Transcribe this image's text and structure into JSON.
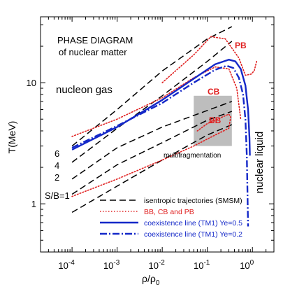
{
  "chart_data": {
    "type": "line",
    "title": "PHASE DIAGRAM",
    "subtitle": "of nuclear matter",
    "xlabel": "ρ/ρ",
    "xlabel_sub": "0",
    "ylabel": "T(MeV)",
    "xscale": "log",
    "yscale": "log",
    "xlim": [
      2e-05,
      3
    ],
    "ylim": [
      0.4,
      35
    ],
    "x_ticks": [
      {
        "v": 0.0001,
        "base": "10",
        "exp": "-4"
      },
      {
        "v": 0.001,
        "base": "10",
        "exp": "-3"
      },
      {
        "v": 0.01,
        "base": "10",
        "exp": "-2"
      },
      {
        "v": 0.1,
        "base": "10",
        "exp": "-1"
      },
      {
        "v": 1,
        "base": "10",
        "exp": "0"
      }
    ],
    "y_ticks": [
      {
        "v": 1,
        "label": "1"
      },
      {
        "v": 10,
        "label": "10"
      }
    ],
    "colors": {
      "black": "#000000",
      "red": "#e02020",
      "blue": "#1428c8",
      "shade": "#bdbdbd"
    },
    "annotations": {
      "nucleon_gas": "nucleon gas",
      "nuclear_liquid": "nuclear liquid",
      "multifragmentation": "multifragmentation",
      "cb": "CB",
      "bb": "BB",
      "pb": "PB",
      "sb6": "6",
      "sb4": "4",
      "sb2": "2",
      "sb1": "S/B=1"
    },
    "legend": [
      {
        "label": "isentropic trajectories (SMSM)",
        "color": "#000000",
        "style": "dashed"
      },
      {
        "label": "BB, CB and PB",
        "color": "#e02020",
        "style": "dotted"
      },
      {
        "label": "coexistence line (TM1) Ye=0.5",
        "color": "#1428c8",
        "style": "solid"
      },
      {
        "label": "coexistence line (TM1) Ye=0.2",
        "color": "#1428c8",
        "style": "dashdot"
      }
    ],
    "shaded_region": {
      "x": [
        0.05,
        0.35
      ],
      "y": [
        3.0,
        7.8
      ]
    },
    "series": [
      {
        "style": "dashed",
        "color": "#000000",
        "points": [
          [
            0.0001,
            0.85
          ],
          [
            0.001,
            1.4
          ],
          [
            0.01,
            2.3
          ],
          [
            0.1,
            3.7
          ],
          [
            0.35,
            4.5
          ]
        ]
      },
      {
        "style": "dashed",
        "color": "#000000",
        "points": [
          [
            0.0001,
            1.2
          ],
          [
            0.001,
            2.1
          ],
          [
            0.01,
            3.2
          ],
          [
            0.1,
            4.9
          ],
          [
            0.35,
            5.8
          ]
        ]
      },
      {
        "style": "dashed",
        "color": "#000000",
        "points": [
          [
            0.0001,
            1.6
          ],
          [
            0.001,
            2.9
          ],
          [
            0.01,
            4.3
          ],
          [
            0.1,
            5.9
          ],
          [
            0.35,
            7.0
          ]
        ]
      },
      {
        "style": "dashed",
        "color": "#000000",
        "points": [
          [
            0.0001,
            2.2
          ],
          [
            0.001,
            4.2
          ],
          [
            0.01,
            7.8
          ],
          [
            0.1,
            15
          ],
          [
            0.35,
            22
          ]
        ]
      },
      {
        "style": "dashed",
        "color": "#000000",
        "points": [
          [
            0.0001,
            3.0
          ],
          [
            0.001,
            6.0
          ],
          [
            0.01,
            12.5
          ],
          [
            0.1,
            23
          ],
          [
            0.35,
            29
          ]
        ]
      },
      {
        "style": "dotted",
        "color": "#e02020",
        "points": [
          [
            0.0001,
            1.15
          ],
          [
            0.001,
            1.6
          ],
          [
            0.01,
            2.3
          ],
          [
            0.05,
            3.0
          ],
          [
            0.15,
            3.7
          ],
          [
            0.3,
            4.2
          ],
          [
            0.33,
            5.2
          ],
          [
            0.3,
            5.5
          ],
          [
            0.1,
            4.6
          ],
          [
            0.06,
            4.0
          ]
        ]
      },
      {
        "style": "dotted",
        "color": "#e02020",
        "points": [
          [
            0.0001,
            3.6
          ],
          [
            0.001,
            5.0
          ],
          [
            0.01,
            7.5
          ],
          [
            0.05,
            11
          ],
          [
            0.15,
            13.5
          ],
          [
            0.3,
            13
          ],
          [
            0.45,
            9
          ],
          [
            0.55,
            5
          ]
        ]
      },
      {
        "style": "dotted",
        "color": "#e02020",
        "points": [
          [
            0.01,
            10
          ],
          [
            0.05,
            17
          ],
          [
            0.12,
            24
          ],
          [
            0.25,
            23
          ],
          [
            0.5,
            16
          ],
          [
            0.7,
            11.5
          ],
          [
            0.95,
            11.8
          ],
          [
            1.1,
            12.6
          ],
          [
            1.25,
            15.2
          ]
        ]
      },
      {
        "style": "solid",
        "color": "#1428c8",
        "points": [
          [
            0.0001,
            2.8
          ],
          [
            0.001,
            4.3
          ],
          [
            0.01,
            7.2
          ],
          [
            0.05,
            10.8
          ],
          [
            0.15,
            14.2
          ],
          [
            0.3,
            15.5
          ],
          [
            0.42,
            15.0
          ],
          [
            0.55,
            13
          ],
          [
            0.7,
            9.5
          ],
          [
            0.8,
            6
          ],
          [
            0.86,
            3.5
          ],
          [
            0.88,
            2.5
          ]
        ]
      },
      {
        "style": "dashdot",
        "color": "#1428c8",
        "points": [
          [
            0.0001,
            2.9
          ],
          [
            0.001,
            4.4
          ],
          [
            0.01,
            6.8
          ],
          [
            0.05,
            10
          ],
          [
            0.15,
            12.8
          ],
          [
            0.27,
            13.8
          ],
          [
            0.38,
            13.2
          ],
          [
            0.5,
            11
          ],
          [
            0.62,
            8
          ],
          [
            0.7,
            5
          ],
          [
            0.75,
            2.5
          ],
          [
            0.78,
            1.2
          ],
          [
            0.8,
            0.65
          ]
        ]
      }
    ]
  }
}
